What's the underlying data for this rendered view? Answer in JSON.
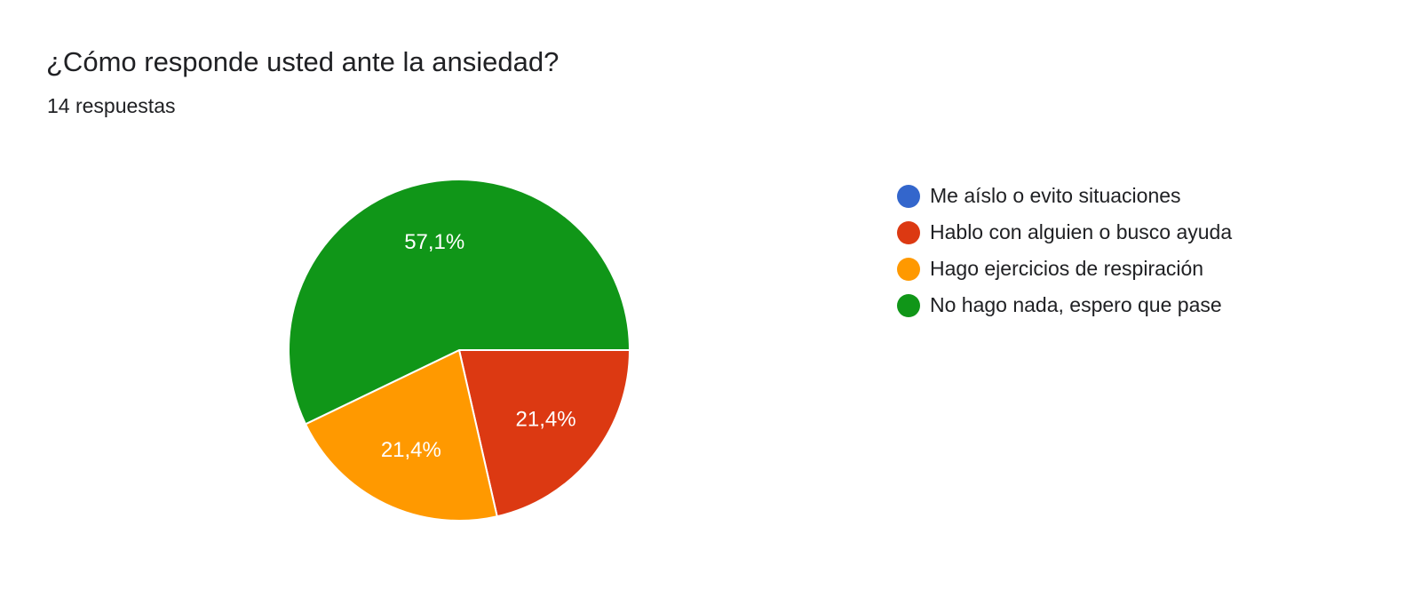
{
  "header": {
    "title": "¿Cómo responde usted ante la ansiedad?",
    "subtitle": "14 respuestas"
  },
  "chart_data": {
    "type": "pie",
    "title": "¿Cómo responde usted ante la ansiedad?",
    "total_responses": 14,
    "legend_position": "right",
    "categories": [
      "Me aíslo o evito situaciones",
      "Hablo con alguien o busco ayuda",
      "Hago ejercicios de respiración",
      "No hago nada, espero que pase"
    ],
    "values": [
      0,
      3,
      3,
      8
    ],
    "labels": [
      "",
      "21,4%",
      "21,4%",
      "57,1%"
    ],
    "colors": [
      "#3366cc",
      "#dc3912",
      "#ff9900",
      "#109618"
    ]
  }
}
